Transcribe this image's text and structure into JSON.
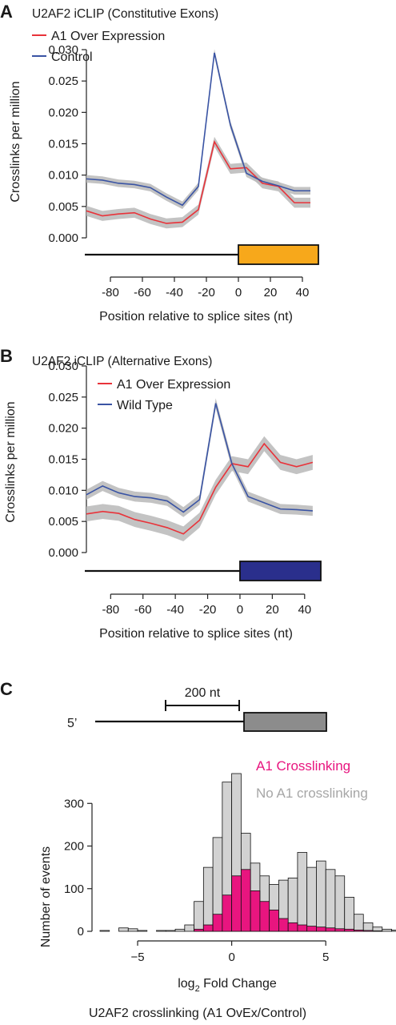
{
  "panels": {
    "a": {
      "letter": "A"
    },
    "b": {
      "letter": "B"
    },
    "c": {
      "letter": "C"
    }
  },
  "colors": {
    "red": "#e8333a",
    "blue": "#3a54a4",
    "band": "#bdbdbd",
    "exon_a": "#f7a81b",
    "exon_b": "#2a2f8c",
    "exon_c": "#8c8c8c",
    "pink": "#e8157f",
    "gray_bar": "#d2d2d2"
  },
  "chart_data": [
    {
      "type": "line",
      "title": "U2AF2 iCLIP (Constitutive Exons)",
      "xlabel": "Position relative to splice sites (nt)",
      "ylabel": "Crosslinks per million",
      "xlim": [
        -95,
        50
      ],
      "ylim": [
        0,
        0.03
      ],
      "x": [
        -95,
        -85,
        -75,
        -65,
        -55,
        -45,
        -35,
        -25,
        -15,
        -5,
        5,
        15,
        25,
        35,
        45
      ],
      "xticks": [
        "-80",
        "-60",
        "-40",
        "-20",
        "0",
        "20",
        "40"
      ],
      "xtick_values": [
        -80,
        -60,
        -40,
        -20,
        0,
        20,
        40
      ],
      "yticks": [
        "0.000",
        "0.005",
        "0.010",
        "0.015",
        "0.020",
        "0.025",
        "0.030"
      ],
      "ytick_values": [
        0,
        0.005,
        0.01,
        0.015,
        0.02,
        0.025,
        0.03
      ],
      "exon_start": 0,
      "series": [
        {
          "name": "A1 Over Expression",
          "color": "#e8333a",
          "values": [
            0.0043,
            0.0035,
            0.0038,
            0.004,
            0.003,
            0.0023,
            0.0025,
            0.0045,
            0.0153,
            0.011,
            0.0112,
            0.0087,
            0.0082,
            0.0056,
            0.0056
          ],
          "band": 0.0008
        },
        {
          "name": "Control",
          "color": "#3a54a4",
          "values": [
            0.0094,
            0.0092,
            0.0087,
            0.0085,
            0.008,
            0.0065,
            0.0052,
            0.0082,
            0.0295,
            0.018,
            0.0103,
            0.009,
            0.0083,
            0.0075,
            0.0075
          ],
          "band": 0.0006
        }
      ]
    },
    {
      "type": "line",
      "title": "U2AF2 iCLIP (Alternative Exons)",
      "xlabel": "Position relative to splice sites (nt)",
      "ylabel": "Crosslinks per million",
      "xlim": [
        -95,
        50
      ],
      "ylim": [
        0,
        0.03
      ],
      "x": [
        -95,
        -85,
        -75,
        -65,
        -55,
        -45,
        -35,
        -25,
        -15,
        -5,
        5,
        15,
        25,
        35,
        45
      ],
      "xticks": [
        "-80",
        "-60",
        "-40",
        "-20",
        "0",
        "20",
        "40"
      ],
      "xtick_values": [
        -80,
        -60,
        -40,
        -20,
        0,
        20,
        40
      ],
      "yticks": [
        "0.000",
        "0.005",
        "0.010",
        "0.015",
        "0.020",
        "0.025",
        "0.030"
      ],
      "ytick_values": [
        0,
        0.005,
        0.01,
        0.015,
        0.02,
        0.025,
        0.03
      ],
      "exon_start": 0,
      "series": [
        {
          "name": "A1 Over Expression",
          "color": "#e8333a",
          "values": [
            0.0062,
            0.0066,
            0.0063,
            0.0053,
            0.0047,
            0.004,
            0.003,
            0.0052,
            0.0105,
            0.0143,
            0.0138,
            0.0175,
            0.0145,
            0.0138,
            0.0145
          ],
          "band": 0.0012
        },
        {
          "name": "Wild Type",
          "color": "#3a54a4",
          "values": [
            0.0093,
            0.0107,
            0.0096,
            0.009,
            0.0088,
            0.0083,
            0.0065,
            0.0085,
            0.024,
            0.0143,
            0.009,
            0.008,
            0.007,
            0.0069,
            0.0067
          ],
          "band": 0.0008
        }
      ]
    },
    {
      "type": "bar",
      "subtype": "overlaid-histogram",
      "gene_label_5p": "5’",
      "scale_bar": "200 nt",
      "xlabel": "log2 Fold Change",
      "xlabel_main": "log",
      "xlabel_sub": "2",
      "xlabel_rest": " Fold Change",
      "caption": "U2AF2 crosslinking (A1 OvEx/Control)",
      "ylabel": "Number of events",
      "xlim": [
        -7,
        7.5
      ],
      "ylim": [
        0,
        370
      ],
      "xticks": [
        "−5",
        "0",
        "5"
      ],
      "xtick_values": [
        -5,
        0,
        5
      ],
      "yticks": [
        "0",
        "100",
        "200",
        "300"
      ],
      "ytick_values": [
        0,
        100,
        200,
        300
      ],
      "bin_width": 0.5,
      "bin_edges_start": -7,
      "series": [
        {
          "name": "No A1 crosslinking",
          "color": "#d2d2d2",
          "values": [
            2,
            0,
            8,
            6,
            2,
            0,
            2,
            2,
            5,
            15,
            70,
            150,
            220,
            350,
            370,
            230,
            160,
            130,
            110,
            120,
            125,
            185,
            150,
            165,
            145,
            130,
            80,
            40,
            20,
            10,
            5,
            3,
            2
          ]
        },
        {
          "name": "A1 Crosslinking",
          "color": "#e8157f",
          "values": [
            0,
            0,
            0,
            0,
            0,
            0,
            0,
            0,
            0,
            0,
            5,
            15,
            40,
            85,
            130,
            145,
            95,
            70,
            50,
            30,
            20,
            15,
            12,
            10,
            8,
            6,
            5,
            3,
            2,
            1,
            0,
            0,
            0
          ]
        }
      ]
    }
  ]
}
